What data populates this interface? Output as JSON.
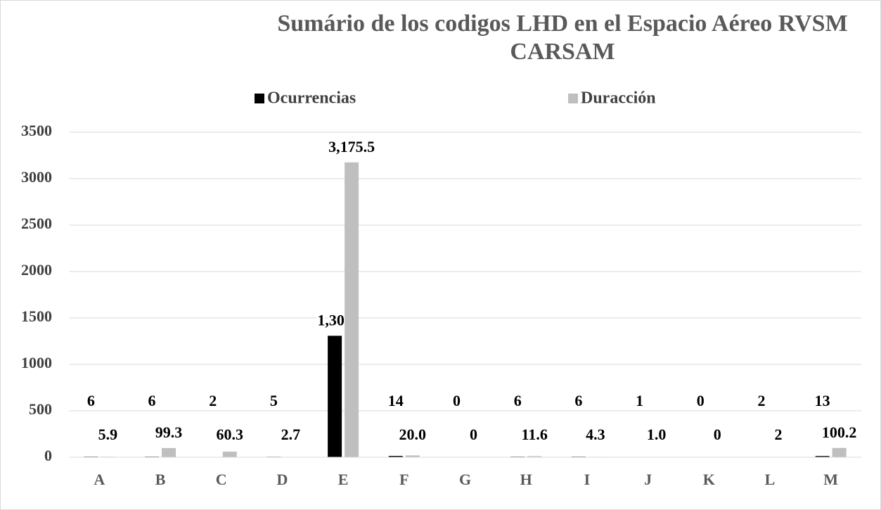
{
  "chart_data": {
    "type": "bar",
    "title": "Sumário de los codigos LHD en el Espacio Aéreo RVSM CARSAM",
    "categories": [
      "A",
      "B",
      "C",
      "D",
      "E",
      "F",
      "G",
      "H",
      "I",
      "J",
      "K",
      "L",
      "M"
    ],
    "series": [
      {
        "name": "Ocurrencias",
        "color": "#000000",
        "values": [
          6,
          6,
          2,
          5,
          1308,
          14,
          0,
          6,
          6,
          1,
          0,
          2,
          13
        ],
        "value_labels": [
          "6",
          "6",
          "2",
          "5",
          "1,308",
          "14",
          "0",
          "6",
          "6",
          "1",
          "0",
          "2",
          "13"
        ]
      },
      {
        "name": "Duracción",
        "color": "#bfbfbf",
        "values": [
          5.9,
          99.3,
          60.3,
          2.7,
          3175.5,
          20.0,
          0,
          11.6,
          4.3,
          1.0,
          0,
          2,
          100.2
        ],
        "value_labels": [
          "5.9",
          "99.3",
          "60.3",
          "2.7",
          "3,175.5",
          "20.0",
          "0",
          "11.6",
          "4.3",
          "1.0",
          "0",
          "2",
          "100.2"
        ]
      }
    ],
    "ylim": [
      0,
      3500
    ],
    "yticks": [
      0,
      500,
      1000,
      1500,
      2000,
      2500,
      3000,
      3500
    ],
    "grid": true,
    "legend": "top"
  }
}
